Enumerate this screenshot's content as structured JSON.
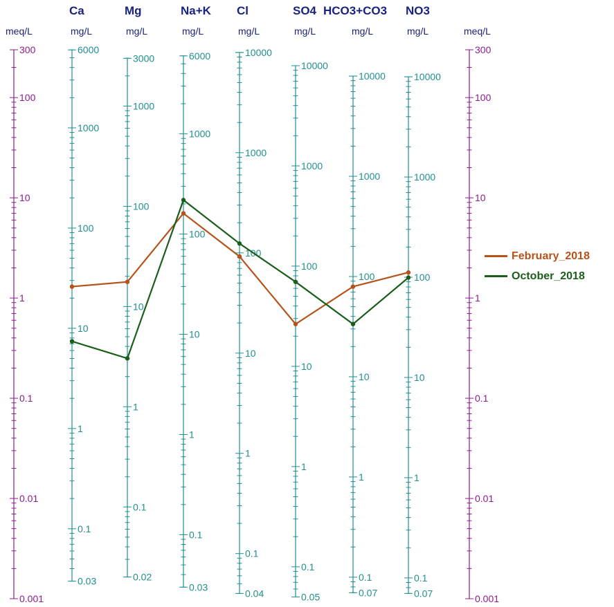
{
  "chart_data": {
    "type": "line",
    "subtype": "schoeller-diagram",
    "colors": {
      "meq_axis": "#8e1b8e",
      "mg_axis": "#1f8f8f",
      "header": "#1a237e"
    },
    "meq_axis": {
      "unit": "meq/L",
      "range": [
        0.001,
        300
      ],
      "scale": "log",
      "tick_labels": [
        "300",
        "100",
        "10",
        "1",
        "0.1",
        "0.01",
        "0.001"
      ]
    },
    "meq_axis_right": {
      "unit": "meq/L",
      "range": [
        0.001,
        300
      ],
      "scale": "log",
      "tick_labels": [
        "300",
        "100",
        "10",
        "1",
        "0.1",
        "0.01",
        "0.001"
      ]
    },
    "columns": [
      {
        "name": "Ca",
        "unit": "mg/L",
        "scale": "log",
        "tick_labels": [
          "6000",
          "1000",
          "100",
          "10",
          "1",
          "0.1",
          "0.03"
        ]
      },
      {
        "name": "Mg",
        "unit": "mg/L",
        "scale": "log",
        "tick_labels": [
          "3000",
          "1000",
          "100",
          "10",
          "1",
          "0.1",
          "0.02"
        ]
      },
      {
        "name": "Na+K",
        "unit": "mg/L",
        "scale": "log",
        "tick_labels": [
          "6000",
          "1000",
          "100",
          "10",
          "1",
          "0.1",
          "0.03"
        ]
      },
      {
        "name": "Cl",
        "unit": "mg/L",
        "scale": "log",
        "tick_labels": [
          "10000",
          "1000",
          "100",
          "10",
          "1",
          "0.1",
          "0.04"
        ]
      },
      {
        "name": "SO4",
        "unit": "mg/L",
        "scale": "log",
        "tick_labels": [
          "10000",
          "1000",
          "100",
          "10",
          "1",
          "0.1",
          "0.05"
        ]
      },
      {
        "name": "HCO3+CO3",
        "unit": "mg/L",
        "scale": "log",
        "tick_labels": [
          "10000",
          "1000",
          "100",
          "10",
          "1",
          "0.1",
          "0.07"
        ]
      },
      {
        "name": "NO3",
        "unit": "mg/L",
        "scale": "log",
        "tick_labels": [
          "10000",
          "1000",
          "100",
          "10",
          "1",
          "0.1",
          "0.07"
        ]
      }
    ],
    "categories": [
      "Ca",
      "Mg",
      "Na+K",
      "Cl",
      "SO4",
      "HCO3+CO3",
      "NO3"
    ],
    "series": [
      {
        "name": "February_2018",
        "color": "#b5531a",
        "values_meq": [
          1.3,
          1.45,
          7.0,
          2.6,
          0.55,
          1.3,
          1.8
        ]
      },
      {
        "name": "October_2018",
        "color": "#1a5e1a",
        "values_meq": [
          0.37,
          0.25,
          9.5,
          3.5,
          1.45,
          0.55,
          1.6
        ]
      }
    ],
    "legend": "right"
  }
}
